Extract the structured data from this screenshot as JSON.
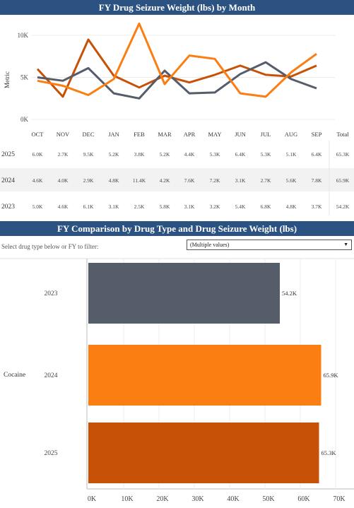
{
  "top_chart": {
    "title": "FY Drug Seizure Weight (lbs) by Month"
  },
  "bottom_chart": {
    "title": "FY Comparison by Drug Type and Drug Seizure Weight (lbs)",
    "filter_label": "Select drug type below or FY to filter:",
    "filter_value": "(Multiple values)"
  },
  "colors": {
    "2023": "#555c6a",
    "2024": "#fb7e12",
    "2025": "#c75106",
    "banner": "#2b5281"
  },
  "chart_data": [
    {
      "type": "line",
      "title": "FY Drug Seizure Weight (lbs) by Month",
      "ylabel": "Metric",
      "ylim": [
        0,
        11600
      ],
      "y_ticks": [
        "0K",
        "5K",
        "10K"
      ],
      "categories": [
        "OCT",
        "NOV",
        "DEC",
        "JAN",
        "FEB",
        "MAR",
        "APR",
        "MAY",
        "JUN",
        "JUL",
        "AUG",
        "SEP"
      ],
      "series": [
        {
          "name": "2025",
          "values": [
            6000,
            2700,
            9500,
            5200,
            3800,
            5200,
            4400,
            5300,
            6400,
            5300,
            5100,
            6400
          ]
        },
        {
          "name": "2024",
          "values": [
            4600,
            4000,
            2900,
            4800,
            11400,
            4200,
            7600,
            7200,
            3100,
            2700,
            5600,
            7800
          ]
        },
        {
          "name": "2023",
          "values": [
            5000,
            4600,
            6100,
            3100,
            2500,
            5800,
            3100,
            3200,
            5400,
            6800,
            4800,
            3700
          ]
        }
      ]
    },
    {
      "type": "table",
      "columns": [
        "OCT",
        "NOV",
        "DEC",
        "JAN",
        "FEB",
        "MAR",
        "APR",
        "MAY",
        "JUN",
        "JUL",
        "AUG",
        "SEP",
        "Total"
      ],
      "rows": [
        {
          "label": "2025",
          "cells": [
            "6.0K",
            "2.7K",
            "9.5K",
            "5.2K",
            "3.8K",
            "5.2K",
            "4.4K",
            "5.3K",
            "6.4K",
            "5.3K",
            "5.1K",
            "6.4K",
            "65.3K"
          ]
        },
        {
          "label": "2024",
          "cells": [
            "4.6K",
            "4.0K",
            "2.9K",
            "4.8K",
            "11.4K",
            "4.2K",
            "7.6K",
            "7.2K",
            "3.1K",
            "2.7K",
            "5.6K",
            "7.8K",
            "65.9K"
          ]
        },
        {
          "label": "2023",
          "cells": [
            "5.0K",
            "4.6K",
            "6.1K",
            "3.1K",
            "2.5K",
            "5.8K",
            "3.1K",
            "3.2K",
            "5.4K",
            "6.8K",
            "4.8K",
            "3.7K",
            "54.2K"
          ]
        }
      ]
    },
    {
      "type": "bar",
      "orientation": "horizontal",
      "title": "FY Comparison by Drug Type and Drug Seizure Weight (lbs)",
      "group": "Cocaine",
      "categories": [
        "2023",
        "2024",
        "2025"
      ],
      "values": [
        54200,
        65900,
        65300
      ],
      "value_labels": [
        "54.2K",
        "65.9K",
        "65.3K"
      ],
      "xlim": [
        0,
        70000
      ],
      "x_ticks": [
        "0K",
        "10K",
        "20K",
        "30K",
        "40K",
        "50K",
        "60K",
        "70K"
      ]
    }
  ]
}
